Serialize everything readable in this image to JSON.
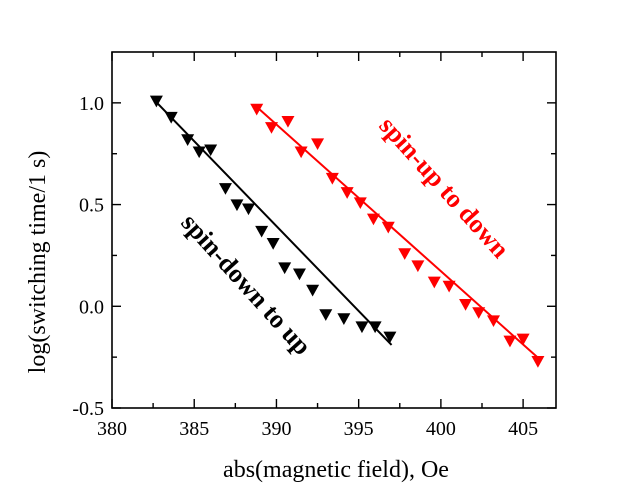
{
  "chart_data": {
    "type": "scatter",
    "xlabel": "abs(magnetic field), Oe",
    "ylabel": "log(switching time/1 s)",
    "xlim": [
      380,
      407
    ],
    "ylim": [
      -0.5,
      1.25
    ],
    "x_ticks": [
      380,
      385,
      390,
      395,
      400,
      405
    ],
    "y_ticks": [
      -0.5,
      0.0,
      0.5,
      1.0
    ],
    "x_tick_labels": [
      "380",
      "385",
      "390",
      "395",
      "400",
      "405"
    ],
    "y_tick_labels": [
      "-0.5",
      "0.0",
      "0.5",
      "1.0"
    ],
    "grid": false,
    "marker": "down-triangle",
    "series": [
      {
        "color": "#000000",
        "x": [
          382.7,
          383.6,
          384.6,
          385.3,
          386.0,
          386.9,
          387.6,
          388.3,
          389.1,
          389.8,
          390.5,
          391.4,
          392.2,
          393.0,
          394.1,
          395.2,
          396.0,
          396.9
        ],
        "y": [
          1.01,
          0.93,
          0.82,
          0.76,
          0.77,
          0.58,
          0.5,
          0.48,
          0.37,
          0.31,
          0.19,
          0.16,
          0.08,
          -0.04,
          -0.06,
          -0.1,
          -0.1,
          -0.15
        ],
        "fit": {
          "x": [
            382.5,
            397.0
          ],
          "y": [
            1.02,
            -0.19
          ]
        }
      },
      {
        "color": "#ff0000",
        "x": [
          388.8,
          389.7,
          390.7,
          391.5,
          392.5,
          393.4,
          394.3,
          395.1,
          395.9,
          396.8,
          397.8,
          398.6,
          399.6,
          400.5,
          401.5,
          402.3,
          403.2,
          404.2,
          405.0,
          405.9
        ],
        "y": [
          0.97,
          0.88,
          0.91,
          0.76,
          0.8,
          0.63,
          0.56,
          0.51,
          0.43,
          0.39,
          0.26,
          0.2,
          0.12,
          0.1,
          0.01,
          -0.03,
          -0.07,
          -0.17,
          -0.16,
          -0.27
        ],
        "fit": {
          "x": [
            388.8,
            406.0
          ],
          "y": [
            0.98,
            -0.26
          ]
        }
      }
    ],
    "annotations": [
      {
        "text": "spin-down to up",
        "color": "#000000"
      },
      {
        "text": "spin-up to down",
        "color": "#ff0000"
      }
    ]
  }
}
